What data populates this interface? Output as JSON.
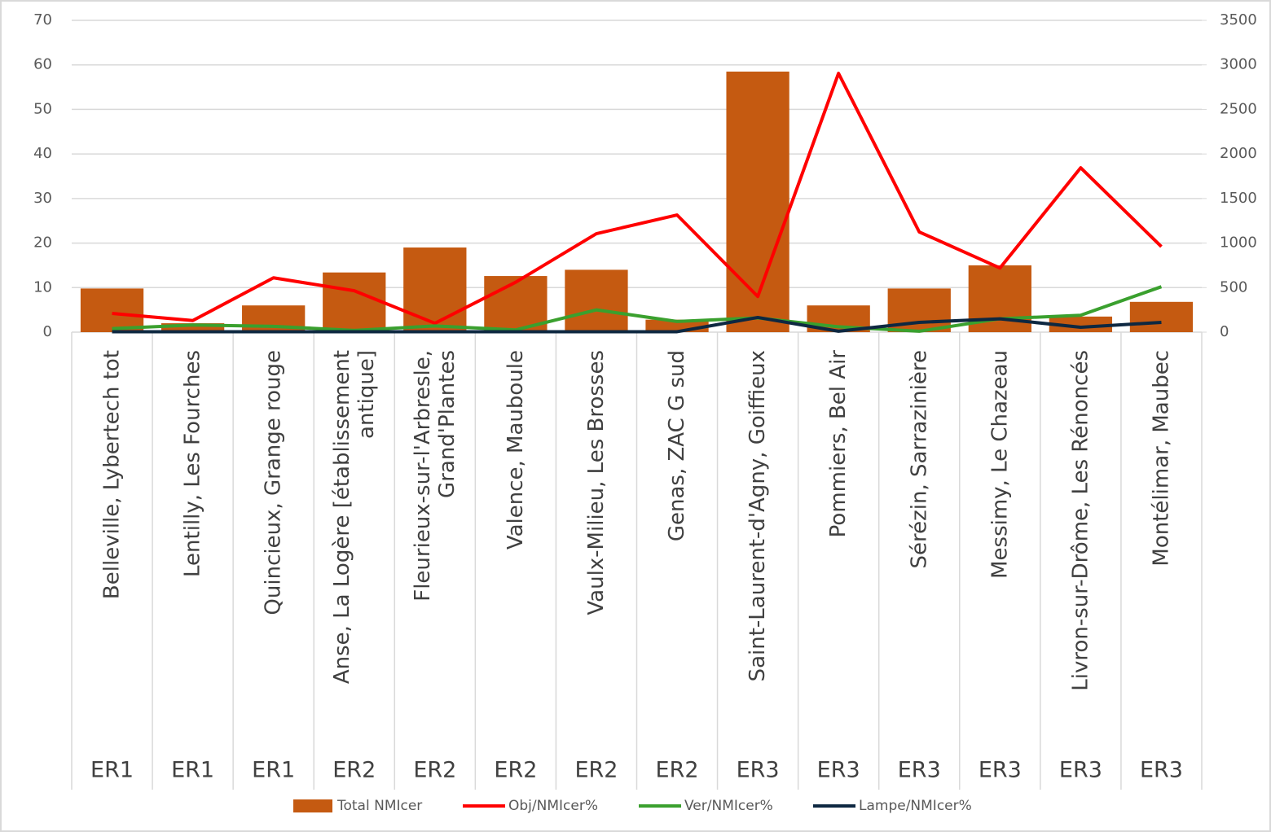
{
  "chart_data": {
    "type": "bar_line",
    "categories": [
      "Belleville, Lybertech tot",
      "Lentilly, Les Fourches",
      "Quincieux, Grange rouge",
      "Anse, La Logère [établissement antique]",
      "Fleurieux-sur-l'Arbresle, Grand'Plantes",
      "Valence, Mauboule",
      "Vaulx-Milieu, Les Brosses",
      "Genas, ZAC G sud",
      "Saint-Laurent-d'Agny, Goiffieux",
      "Pommiers, Bel Air",
      "Sérézin, Sarrazinière",
      "Messimy, Le Chazeau",
      "Livron-sur-Drôme, Les Rénoncés",
      "Montélimar, Maubec"
    ],
    "groups": [
      "ER1",
      "ER1",
      "ER1",
      "ER2",
      "ER2",
      "ER2",
      "ER2",
      "ER2",
      "ER3",
      "ER3",
      "ER3",
      "ER3",
      "ER3",
      "ER3"
    ],
    "series": [
      {
        "name": "Total NMIcer",
        "type": "bar",
        "axis": "y2",
        "color": "#c55a11",
        "values": [
          490,
          100,
          300,
          670,
          950,
          630,
          700,
          140,
          2925,
          300,
          490,
          750,
          175,
          340
        ]
      },
      {
        "name": "Obj/NMIcer%",
        "type": "line",
        "color": "#ff0000",
        "values": [
          4.2,
          2.6,
          12.2,
          9.3,
          2,
          11.2,
          22.1,
          26.3,
          8,
          58.1,
          22.5,
          14.4,
          36.9,
          19.2
        ]
      },
      {
        "name": "Ver/NMIcer%",
        "type": "line",
        "color": "#3aa02e",
        "values": [
          0.8,
          1.6,
          1.3,
          0.4,
          1.4,
          0.5,
          5,
          2.4,
          3.2,
          1.2,
          0.2,
          3,
          3.8,
          10.2
        ]
      },
      {
        "name": "Lampe/NMIcer%",
        "type": "line",
        "color": "#0e2841",
        "values": [
          0.1,
          0.1,
          0.1,
          0.1,
          0.1,
          0.1,
          0.1,
          0.1,
          3.3,
          0.2,
          2.2,
          3,
          1.1,
          2.2
        ]
      }
    ],
    "ylim": [
      0,
      70
    ],
    "yticks": [
      0,
      10,
      20,
      30,
      40,
      50,
      60,
      70
    ],
    "y2lim": [
      0,
      3500
    ],
    "y2ticks": [
      0,
      500,
      1000,
      1500,
      2000,
      2500,
      3000,
      3500
    ],
    "grid": true,
    "legend": "bottom"
  }
}
